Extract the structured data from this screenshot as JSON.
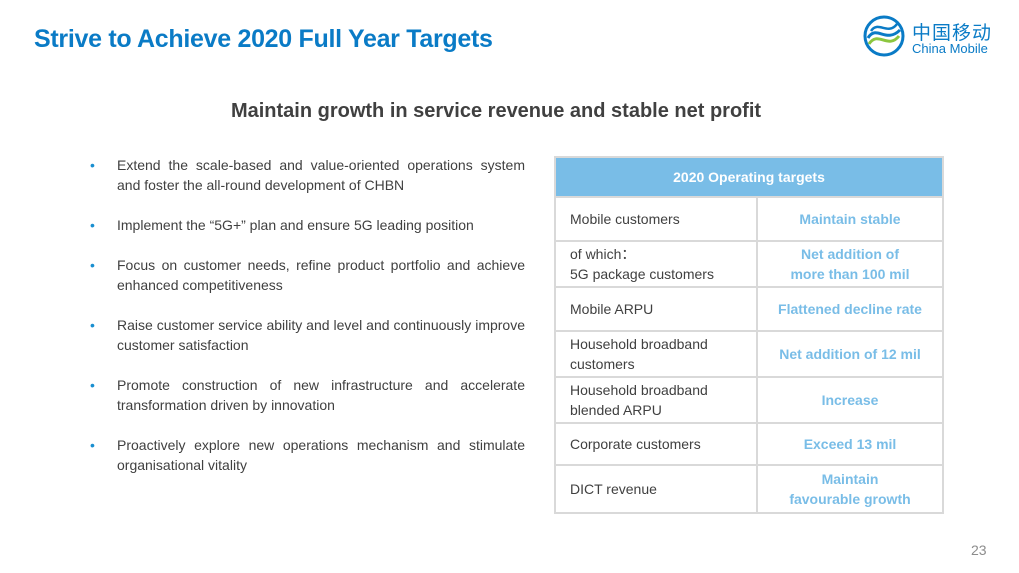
{
  "title": "Strive to Achieve 2020 Full Year Targets",
  "logo": {
    "icon": "china-mobile-logo-icon",
    "chinese": "中国移动",
    "english": "China Mobile"
  },
  "subtitle": "Maintain growth in service revenue and stable net profit",
  "bullets": [
    "Extend the scale-based and value-oriented operations system and foster the all-round development of CHBN",
    "Implement the “5G+” plan and ensure 5G leading position",
    "Focus on customer needs, refine product portfolio and achieve enhanced competitiveness",
    "Raise customer service ability and level and continuously improve customer satisfaction",
    "Promote construction of new infrastructure and accelerate transformation driven by innovation",
    "Proactively explore new operations mechanism and stimulate organisational vitality"
  ],
  "table": {
    "header": "2020 Operating targets",
    "rows": [
      {
        "label": [
          "Mobile customers"
        ],
        "value": [
          "Maintain stable"
        ]
      },
      {
        "label": [
          "of which：",
          "5G package customers"
        ],
        "value": [
          "Net addition of",
          "more than 100 mil"
        ]
      },
      {
        "label": [
          "Mobile ARPU"
        ],
        "value": [
          "Flattened decline rate"
        ]
      },
      {
        "label": [
          "Household broadband",
          "customers"
        ],
        "value": [
          "Net addition of 12 mil"
        ]
      },
      {
        "label": [
          "Household broadband",
          "blended ARPU"
        ],
        "value": [
          "Increase"
        ]
      },
      {
        "label": [
          "Corporate customers"
        ],
        "value": [
          "Exceed 13 mil"
        ]
      },
      {
        "label": [
          "DICT revenue"
        ],
        "value": [
          "Maintain",
          "favourable growth"
        ]
      }
    ]
  },
  "page_number": "23",
  "colors": {
    "brand_blue": "#0a7bc6",
    "table_header": "#79bde7",
    "accent_green": "#8cc63f"
  }
}
